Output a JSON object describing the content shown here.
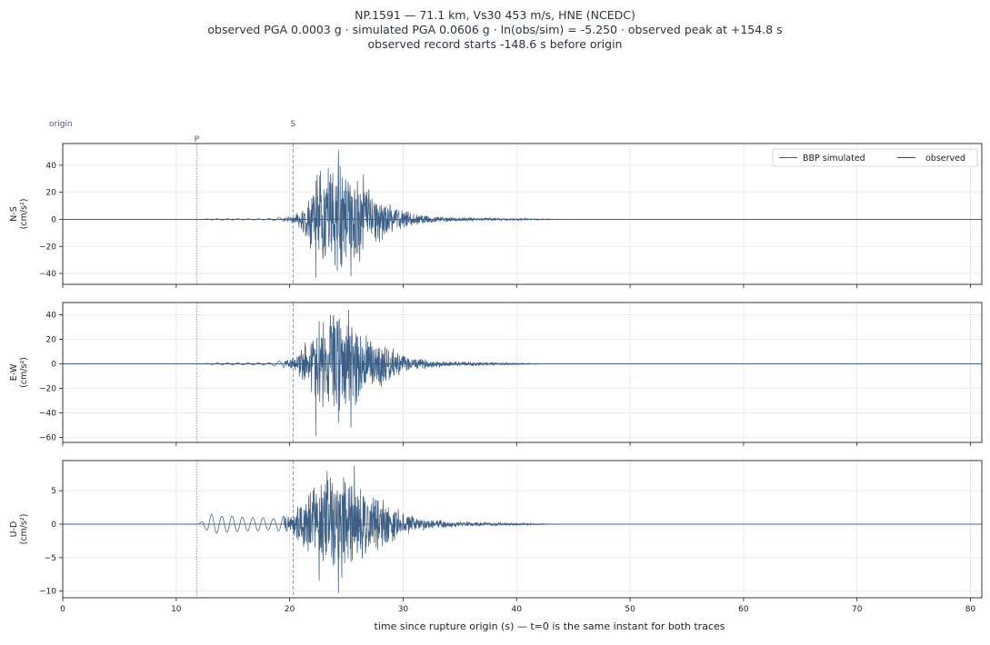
{
  "header": {
    "line1": "NP.1591  —  71.1 km, Vs30 453 m/s, HNE (NCEDC)",
    "line2": "observed PGA 0.0003 g   ·   simulated PGA 0.0606 g   ·   ln(obs/sim) = -5.250   ·   observed peak at +154.8 s",
    "line3": "observed record starts -148.6 s before origin"
  },
  "colors": {
    "trace": "#3d5f85",
    "grid": "#e6e6e6",
    "marker": "#8090b0"
  },
  "chart_data": {
    "type": "line",
    "xlabel": "time since rupture origin (s)   —   t=0 is the same instant for both traces",
    "xlim": [
      0,
      81
    ],
    "xticks": [
      0,
      10,
      20,
      30,
      40,
      50,
      60,
      70,
      80
    ],
    "markers": [
      {
        "label": "origin",
        "t": 0
      },
      {
        "label": "P",
        "t": 11.8
      },
      {
        "label": "S",
        "t": 20.3
      }
    ],
    "legend": [
      "BBP simulated",
      "observed"
    ],
    "legend_position": "top-right",
    "grid": true,
    "panels": [
      {
        "name": "N-S",
        "ylabel": [
          "N-S",
          "(cm/s²)"
        ],
        "ylim": [
          -48,
          56
        ],
        "yticks": [
          -40,
          -20,
          0,
          20,
          40
        ],
        "envelope": [
          [
            12.5,
            0.3
          ],
          [
            14,
            0.5
          ],
          [
            16,
            0.4
          ],
          [
            18,
            0.4
          ],
          [
            19.5,
            1.5
          ],
          [
            20.5,
            4
          ],
          [
            21.3,
            12
          ],
          [
            22,
            26
          ],
          [
            22.5,
            35
          ],
          [
            23,
            38
          ],
          [
            24,
            46
          ],
          [
            25,
            40
          ],
          [
            26,
            34
          ],
          [
            27,
            24
          ],
          [
            28,
            18
          ],
          [
            29,
            12
          ],
          [
            30,
            7
          ],
          [
            31,
            5
          ],
          [
            33,
            2.5
          ],
          [
            35,
            1.6
          ],
          [
            38,
            1.2
          ],
          [
            40,
            0.8
          ],
          [
            43,
            0.3
          ],
          [
            45,
            0
          ]
        ],
        "peaks": [
          [
            22.3,
            -43
          ],
          [
            22.7,
            36
          ],
          [
            24.3,
            51
          ],
          [
            24.2,
            -38
          ],
          [
            25.4,
            -42
          ],
          [
            23.4,
            38
          ],
          [
            26.5,
            33
          ]
        ]
      },
      {
        "name": "E-W",
        "ylabel": [
          "E-W",
          "(cm/s²)"
        ],
        "ylim": [
          -64,
          50
        ],
        "yticks": [
          -60,
          -40,
          -20,
          0,
          20,
          40
        ],
        "envelope": [
          [
            12.5,
            0.3
          ],
          [
            14,
            0.8
          ],
          [
            16,
            0.8
          ],
          [
            18,
            0.8
          ],
          [
            19.5,
            3
          ],
          [
            20.5,
            8
          ],
          [
            21.3,
            18
          ],
          [
            22,
            30
          ],
          [
            22.5,
            40
          ],
          [
            23,
            44
          ],
          [
            24,
            46
          ],
          [
            25,
            42
          ],
          [
            26,
            36
          ],
          [
            27,
            26
          ],
          [
            28,
            20
          ],
          [
            29,
            14
          ],
          [
            30,
            8
          ],
          [
            31,
            5
          ],
          [
            33,
            3
          ],
          [
            35,
            2
          ],
          [
            38,
            1.2
          ],
          [
            40,
            0.8
          ],
          [
            43,
            0
          ]
        ],
        "peaks": [
          [
            22.3,
            -59
          ],
          [
            22.6,
            35
          ],
          [
            24.3,
            46
          ],
          [
            24.3,
            -48
          ],
          [
            25.4,
            -52
          ],
          [
            25.2,
            44
          ],
          [
            23.6,
            40
          ]
        ]
      },
      {
        "name": "U-D",
        "ylabel": [
          "U-D",
          "(cm/s²)"
        ],
        "ylim": [
          -11,
          9.5
        ],
        "yticks": [
          -10,
          -5,
          0,
          5
        ],
        "envelope": [
          [
            12,
            0.1
          ],
          [
            12.6,
            0.8
          ],
          [
            13.1,
            1.5
          ],
          [
            14,
            1.2
          ],
          [
            15,
            1.2
          ],
          [
            16,
            1
          ],
          [
            17.5,
            1
          ],
          [
            18.5,
            0.8
          ],
          [
            19.5,
            1.2
          ],
          [
            20.5,
            2.5
          ],
          [
            21.3,
            4.5
          ],
          [
            22,
            7
          ],
          [
            23,
            8
          ],
          [
            24,
            8.5
          ],
          [
            25,
            8
          ],
          [
            26,
            7
          ],
          [
            27,
            5
          ],
          [
            28,
            4
          ],
          [
            29,
            3
          ],
          [
            30,
            2
          ],
          [
            31,
            1.3
          ],
          [
            33,
            0.7
          ],
          [
            35,
            0.4
          ],
          [
            38,
            0.3
          ],
          [
            40,
            0.2
          ],
          [
            44,
            0
          ]
        ],
        "peaks": [
          [
            24.3,
            -10.3
          ],
          [
            25.7,
            8.7
          ],
          [
            22.6,
            8
          ],
          [
            23.3,
            8
          ],
          [
            22.6,
            -8.5
          ],
          [
            24.6,
            -8
          ]
        ]
      }
    ]
  }
}
